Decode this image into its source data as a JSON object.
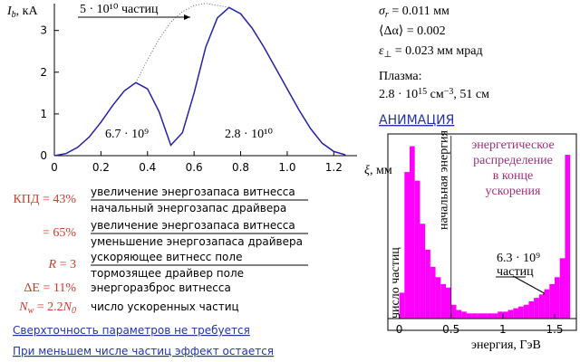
{
  "chart_data": [
    {
      "type": "line",
      "ylabel": [
        {
          "text": "I",
          "style": "i"
        },
        {
          "text": "b",
          "pos": "sub",
          "style": "i"
        },
        {
          "text": ", кА"
        }
      ],
      "xlabel": [
        {
          "text": "ξ",
          "style": "i"
        },
        {
          "text": ", мм"
        }
      ],
      "x": [
        0,
        0.05,
        0.1,
        0.15,
        0.2,
        0.25,
        0.3,
        0.35,
        0.4,
        0.45,
        0.5,
        0.55,
        0.6,
        0.65,
        0.7,
        0.75,
        0.8,
        0.85,
        0.9,
        0.95,
        1.0,
        1.05,
        1.1,
        1.15,
        1.2,
        1.25
      ],
      "series": [
        {
          "color": "#2222aa",
          "style": "solid",
          "values": [
            0,
            0.05,
            0.2,
            0.45,
            0.8,
            1.2,
            1.55,
            1.75,
            1.6,
            1.05,
            0.25,
            0.55,
            1.5,
            2.6,
            3.3,
            3.55,
            3.4,
            3.05,
            2.6,
            2.1,
            1.6,
            1.1,
            0.65,
            0.3,
            0.1,
            0.02
          ]
        },
        {
          "color": "#666666",
          "style": "dotted",
          "values": [
            null,
            null,
            null,
            null,
            null,
            null,
            null,
            1.75,
            2.3,
            2.8,
            3.2,
            3.45,
            3.6,
            3.65,
            3.6,
            3.55,
            null,
            null,
            null,
            null,
            null,
            null,
            null,
            null,
            null,
            null
          ]
        }
      ],
      "xlim": [
        0,
        1.3
      ],
      "ylim": [
        0,
        3.6
      ],
      "xticks": [
        0,
        0.2,
        0.4,
        0.6,
        0.8,
        {
          "value": 1,
          "label": "1.0"
        },
        1.2
      ],
      "yticks": [
        0,
        1,
        2,
        3
      ],
      "annotations": [
        "5 · 10¹⁰ частиц",
        "6.7 · 10⁹",
        "2.8 · 10¹⁰"
      ]
    },
    {
      "type": "histogram",
      "ylabel": "число частиц",
      "xlabel": "энергия, ГэВ",
      "color": "#ff00ff",
      "bins": [
        0,
        0.05,
        0.1,
        0.15,
        0.2,
        0.25,
        0.3,
        0.35,
        0.4,
        0.45,
        0.5,
        0.55,
        0.6,
        0.65,
        0.7,
        0.75,
        0.8,
        0.85,
        0.9,
        0.95,
        1,
        1.05,
        1.1,
        1.15,
        1.2,
        1.25,
        1.3,
        1.35,
        1.4,
        1.45,
        1.5,
        1.55,
        1.6,
        1.65
      ],
      "values": [
        15,
        85,
        100,
        80,
        55,
        40,
        30,
        24,
        20,
        18,
        8,
        5,
        4,
        3,
        3,
        3,
        3,
        3,
        3,
        4,
        4,
        5,
        6,
        7,
        8,
        10,
        12,
        14,
        17,
        20,
        24,
        35,
        95
      ],
      "xlim": [
        -0.11,
        1.71
      ],
      "ylim": [
        0,
        105
      ],
      "xticks": [
        0,
        0.5,
        1,
        1.5
      ],
      "marker_label": "начальная энергия",
      "marker_x": 0.5,
      "description": [
        "энергетическое",
        "распределение",
        "в конце",
        "ускорения"
      ],
      "count_label": [
        "6.3 · 10⁹",
        "частиц"
      ]
    }
  ],
  "ratios": [
    {
      "label": [
        {
          "text": "КПД = 43%"
        }
      ],
      "numerator": "увеличение энергозапаса витнесса",
      "denominator": "начальный энергозапас драйвера"
    },
    {
      "label": [
        {
          "text": "= 65%"
        }
      ],
      "numerator": "увеличение энергозапаса витнесса",
      "denominator": "уменьшение энергозапаса драйвера"
    },
    {
      "label": [
        {
          "text": "R",
          "style": "i"
        },
        {
          "text": " = 3"
        }
      ],
      "numerator": "ускоряющее витнесс поле",
      "denominator": "тормозящее драйвер поле"
    }
  ],
  "quantities": [
    {
      "label": [
        {
          "text": "ΔE = 11%"
        }
      ],
      "text": "энергоразброс витнесса"
    },
    {
      "label": [
        {
          "text": "N",
          "style": "i"
        },
        {
          "text": "w",
          "pos": "sub",
          "style": "i"
        },
        {
          "text": " = 2.2"
        },
        {
          "text": "N",
          "style": "i"
        },
        {
          "text": "0",
          "pos": "sub",
          "style": "i"
        }
      ],
      "text": "число ускоренных частиц"
    }
  ],
  "links": [
    "Сверхточность параметров не требуется",
    "При меньшем числе частиц эффект остается"
  ],
  "parameters": [
    [
      {
        "text": "σ",
        "style": "i"
      },
      {
        "text": "r",
        "pos": "sub",
        "style": "i"
      },
      {
        "text": " = 0.011 мм"
      }
    ],
    [
      {
        "text": "⟨Δα⟩ = 0.002"
      }
    ],
    [
      {
        "text": "ε",
        "style": "i"
      },
      {
        "text": "⊥",
        "pos": "sub"
      },
      {
        "text": " = 0.023 мм мрад"
      }
    ]
  ],
  "plasma": {
    "title": "Плазма:",
    "value": [
      {
        "text": "2.8 · 10"
      },
      {
        "text": "15",
        "pos": "sup"
      },
      {
        "text": " см"
      },
      {
        "text": "−3",
        "pos": "sup"
      },
      {
        "text": ",  51 см"
      }
    ]
  },
  "animation_link": "АНИМАЦИЯ"
}
